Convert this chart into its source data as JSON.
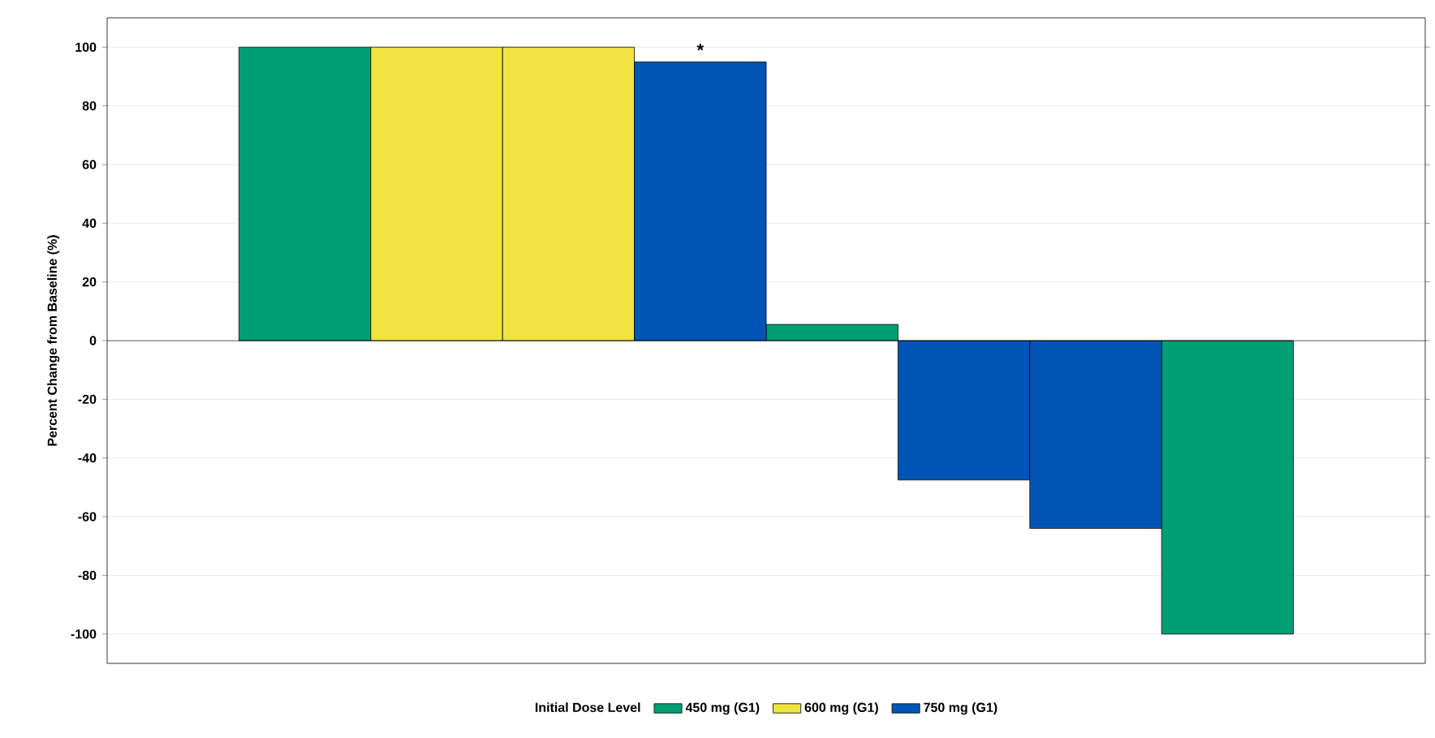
{
  "chart_data": {
    "type": "bar",
    "ylabel": "Percent Change from Baseline (%)",
    "legend_title": "Initial Dose Level",
    "categories": [
      null,
      null,
      null,
      null,
      null,
      null,
      null,
      null,
      null,
      null
    ],
    "series": [
      {
        "name": "450 mg (G1)",
        "color": "#009e73",
        "values": [
          null,
          100,
          null,
          null,
          null,
          5.5,
          null,
          null,
          -100,
          null
        ]
      },
      {
        "name": "600 mg (G1)",
        "color": "#f0e442",
        "values": [
          null,
          null,
          100,
          100,
          null,
          null,
          null,
          null,
          null,
          null
        ]
      },
      {
        "name": "750 mg (G1)",
        "color": "#0055b4",
        "values": [
          null,
          null,
          null,
          null,
          95,
          null,
          -47.5,
          -64,
          null,
          null
        ],
        "value_labels": [
          null,
          null,
          null,
          null,
          "*",
          null,
          null,
          null,
          null,
          null
        ]
      }
    ],
    "ylim": [
      -110,
      110
    ],
    "yticks": [
      -100,
      -80,
      -60,
      -40,
      -20,
      0,
      20,
      40,
      60,
      80,
      100
    ],
    "grid": "y",
    "legend": "bottom"
  }
}
